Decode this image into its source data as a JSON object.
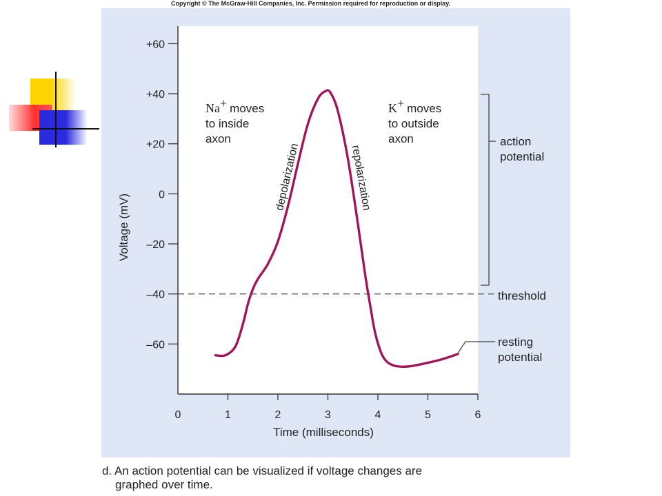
{
  "copyright": "Copyright © The McGraw-Hill Companies, Inc. Permission required for reproduction or display.",
  "caption": {
    "line1": "d. An action potential can be visualized if voltage changes are",
    "line2": "graphed over time."
  },
  "colors": {
    "trace": "#a0155a",
    "panel": "#dfe6f5",
    "deco_yellow": "#ffd400",
    "deco_red": "#ff3030",
    "deco_blue": "#2a2adf"
  },
  "chart_data": {
    "type": "line",
    "xlabel": "Time (milliseconds)",
    "ylabel": "Voltage (mV)",
    "xlim": [
      0,
      6
    ],
    "ylim": [
      -80,
      67
    ],
    "xticks": [
      0,
      1,
      2,
      3,
      4,
      5,
      6
    ],
    "xtick_labels": [
      "0",
      "1",
      "2",
      "3",
      "4",
      "5",
      "6"
    ],
    "yticks": [
      60,
      40,
      20,
      0,
      -20,
      -40,
      -60
    ],
    "ytick_labels": [
      "+60",
      "+40",
      "+20",
      "0",
      "–20",
      "–40",
      "–60"
    ],
    "grid": false,
    "threshold": -40,
    "series": [
      {
        "x": [
          0.75,
          0.95,
          1.15,
          1.3,
          1.4,
          1.5,
          1.6,
          1.8,
          2.0,
          2.2,
          2.4,
          2.6,
          2.8,
          2.95,
          3.05,
          3.2,
          3.4,
          3.6,
          3.75,
          3.85,
          3.95,
          4.1,
          4.3,
          4.6,
          5.0,
          5.3,
          5.6
        ],
        "y": [
          -64.5,
          -64.5,
          -61,
          -52,
          -44,
          -38,
          -34,
          -28,
          -19,
          -5,
          12,
          28,
          38,
          41,
          40.5,
          33,
          14,
          -12,
          -33,
          -45,
          -56,
          -65,
          -68.5,
          -69,
          -67.5,
          -66,
          -64
        ]
      }
    ],
    "annotations": {
      "na_label": "Na",
      "na_sup": "+",
      "na_rest": "moves",
      "na_line2": "to inside",
      "na_line3": "axon",
      "k_label": "K",
      "k_sup": "+",
      "k_rest": "moves",
      "k_line2": "to outside",
      "k_line3": "axon",
      "depolarization": "depolarization",
      "repolarization": "repolarization",
      "action_potential_line1": "action",
      "action_potential_line2": "potential",
      "threshold": "threshold",
      "resting_line1": "resting",
      "resting_line2": "potential"
    }
  }
}
